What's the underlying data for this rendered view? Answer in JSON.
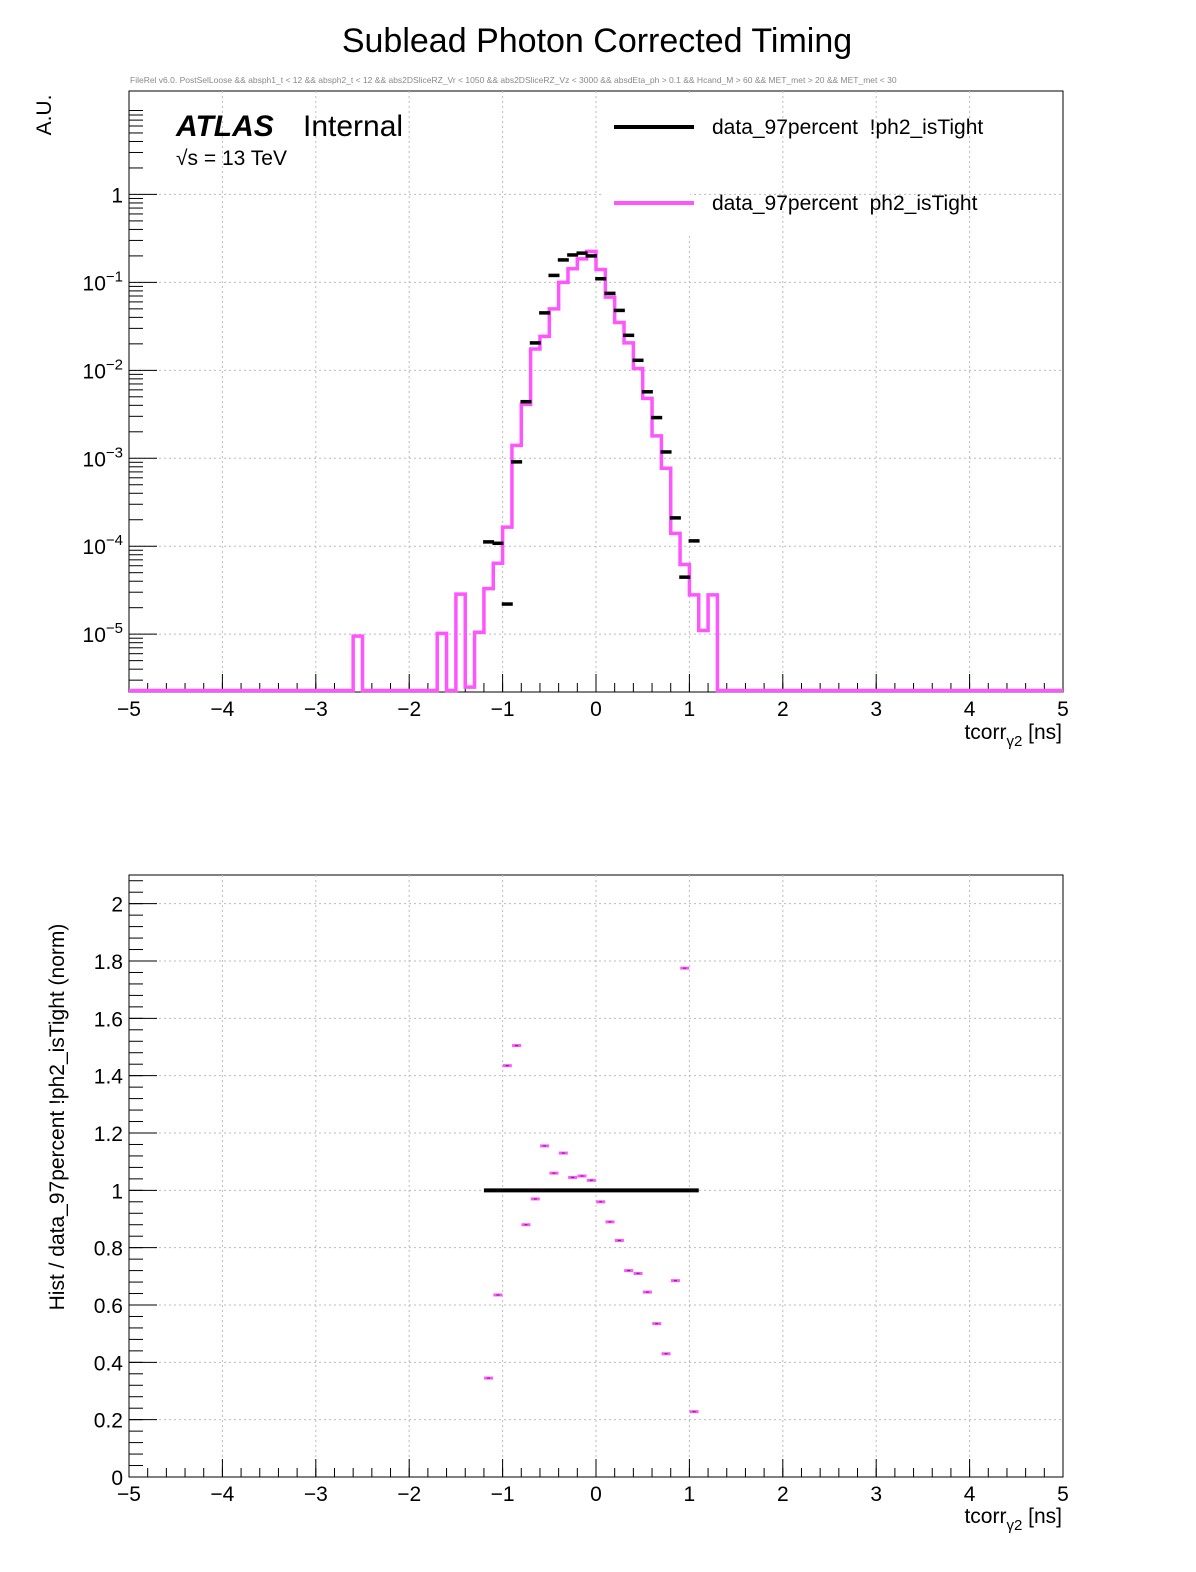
{
  "title": "Sublead Photon Corrected Timing",
  "cut_string": "FileRel v6.0. PostSelLoose &&  absph1_t < 12 && absph2_t < 12 && abs2DSliceRZ_Vr < 1050 && abs2DSliceRZ_Vz < 3000 && absdEta_ph > 0.1 && Hcand_M > 60 && MET_met > 20 && MET_met < 30",
  "atlas_label": "ATLAS",
  "atlas_status": "Internal",
  "energy_label": "√s = 13 TeV",
  "colors": {
    "black_series": "#000000",
    "magenta_series": "#ff55ff",
    "grid": "#bbbbbb"
  },
  "chart_data": [
    {
      "type": "line",
      "yscale": "log",
      "xlabel": "tcorr",
      "xlabel_sub": "γ2",
      "xlabel_unit": "[ns]",
      "ylabel": "A.U.",
      "xlim": [
        -5,
        5
      ],
      "ylim": [
        2.2e-06,
        15
      ],
      "x_ticks": [
        "−5",
        "−4",
        "−3",
        "−2",
        "−1",
        "0",
        "1",
        "2",
        "3",
        "4",
        "5"
      ],
      "y_ticks": [
        {
          "value": 1,
          "label": "1"
        },
        {
          "value": 0.1,
          "label": "10",
          "exp": "−1"
        },
        {
          "value": 0.01,
          "label": "10",
          "exp": "−2"
        },
        {
          "value": 0.001,
          "label": "10",
          "exp": "−3"
        },
        {
          "value": 0.0001,
          "label": "10",
          "exp": "−4"
        },
        {
          "value": 1e-05,
          "label": "10",
          "exp": "−5"
        }
      ],
      "grid": true,
      "legend": "top-right",
      "series": [
        {
          "name": "data_97percent  !ph2_isTight",
          "style": "markers",
          "x": [
            -1.15,
            -1.05,
            -0.95,
            -0.85,
            -0.75,
            -0.65,
            -0.55,
            -0.45,
            -0.35,
            -0.25,
            -0.15,
            -0.05,
            0.05,
            0.15,
            0.25,
            0.35,
            0.45,
            0.55,
            0.65,
            0.75,
            0.85,
            0.95,
            1.05
          ],
          "y": [
            0.000112,
            0.000108,
            2.2e-05,
            0.00091,
            0.0044,
            0.0205,
            0.045,
            0.12,
            0.18,
            0.205,
            0.215,
            0.2,
            0.11,
            0.075,
            0.048,
            0.025,
            0.013,
            0.0057,
            0.0029,
            0.00118,
            0.00021,
            4.45e-05,
            0.000115
          ]
        },
        {
          "name": "data_97percent  ph2_isTight",
          "style": "step",
          "bin_edges": [
            -5,
            -2.6,
            -2.5,
            -1.7,
            -1.6,
            -1.5,
            -1.4,
            -1.3,
            -1.2,
            -1.1,
            -1.0,
            -0.9,
            -0.8,
            -0.7,
            -0.6,
            -0.5,
            -0.4,
            -0.3,
            -0.2,
            -0.1,
            0.0,
            0.1,
            0.2,
            0.3,
            0.4,
            0.5,
            0.6,
            0.7,
            0.8,
            0.9,
            1.0,
            1.1,
            1.2,
            1.3,
            5
          ],
          "y": [
            0,
            9.5e-06,
            0,
            1.02e-05,
            0,
            2.85e-05,
            2.5e-06,
            1.05e-05,
            3.3e-05,
            6.4e-05,
            0.000165,
            0.0014,
            0.0041,
            0.0175,
            0.0243,
            0.05,
            0.1,
            0.143,
            0.185,
            0.225,
            0.14,
            0.068,
            0.035,
            0.0205,
            0.0105,
            0.0048,
            0.0018,
            0.00077,
            0.00014,
            6.2e-05,
            2.8e-05,
            1.1e-05,
            2.8e-05,
            0
          ]
        }
      ]
    },
    {
      "type": "scatter",
      "xlabel": "tcorr",
      "xlabel_sub": "γ2",
      "xlabel_unit": "[ns]",
      "ylabel": "Hist / data_97percent  !ph2_isTight (norm)",
      "xlim": [
        -5,
        5
      ],
      "ylim": [
        0,
        2.1
      ],
      "x_ticks": [
        "−5",
        "−4",
        "−3",
        "−2",
        "−1",
        "0",
        "1",
        "2",
        "3",
        "4",
        "5"
      ],
      "y_ticks": [
        "0",
        "0.2",
        "0.4",
        "0.6",
        "0.8",
        "1",
        "1.2",
        "1.4",
        "1.6",
        "1.8",
        "2"
      ],
      "grid": true,
      "reference_line": {
        "y": 1,
        "x_range": [
          -1.2,
          1.1
        ]
      },
      "series": [
        {
          "name": "data_97percent  ph2_isTight",
          "x": [
            -1.15,
            -1.05,
            -0.95,
            -0.85,
            -0.75,
            -0.65,
            -0.55,
            -0.45,
            -0.35,
            -0.25,
            -0.15,
            -0.05,
            0.05,
            0.15,
            0.25,
            0.35,
            0.45,
            0.55,
            0.65,
            0.75,
            0.85,
            0.95,
            1.05
          ],
          "y": [
            0.345,
            0.635,
            1.435,
            1.505,
            0.88,
            0.97,
            1.155,
            1.06,
            1.13,
            1.045,
            1.05,
            1.035,
            0.96,
            0.89,
            0.825,
            0.72,
            0.71,
            0.645,
            0.535,
            0.43,
            0.685,
            1.775,
            0.228
          ]
        }
      ]
    }
  ]
}
